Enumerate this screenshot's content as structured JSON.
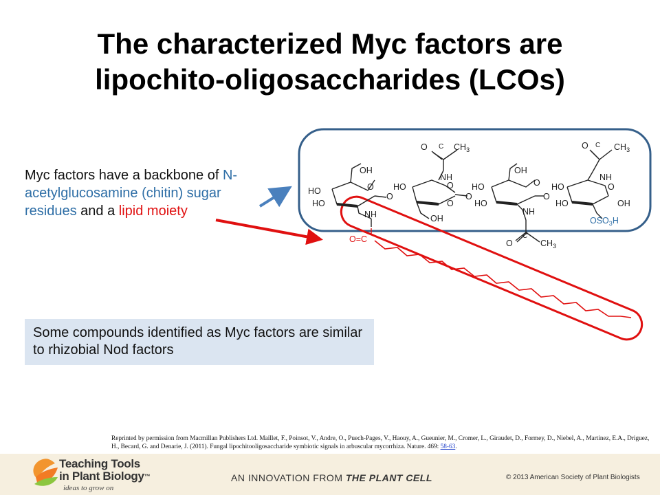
{
  "title": {
    "line1": "The characterized Myc factors are",
    "line2": "lipochito-oligosaccharides (LCOs)"
  },
  "description": {
    "part1": "Myc factors have a backbone of ",
    "blue_part": "N-acetylglucosamine (chitin) sugar residues",
    "part2": " and a ",
    "red_part": "lipid moiety"
  },
  "note": {
    "text": "Some compounds identified as Myc factors are similar to rhizobial Nod factors"
  },
  "structure_labels": {
    "o_c_ch3": [
      "O",
      "C",
      "CH",
      "3"
    ],
    "oh": "OH",
    "ho": "HO",
    "o": "O",
    "nh": "NH",
    "oso3h": [
      "OSO",
      "3",
      "H"
    ],
    "ester": "O=C"
  },
  "citation": {
    "text": "Reprinted by permission from Macmillan Publishers Ltd.  Maillet, F., Poinsot, V., Andre, O., Puech-Pages, V., Haouy, A., Gueunier, M., Cromer, L., Giraudet, D., Formey, D., Niebel, A., Martinez, E.A., Driguez, H., Becard, G. and Denarie, J. (2011). Fungal lipochitooligosaccharide symbiotic signals in arbuscular mycorrhiza. Nature. 469: ",
    "link": "58-63",
    "end": "."
  },
  "footer": {
    "brand_line1": "Teaching Tools",
    "brand_line2": "in Plant Biology",
    "trademark": "™",
    "tagline": "ideas to grow on",
    "innovation_prefix": "AN INNOVATION FROM ",
    "innovation_name": "THE PLANT CELL",
    "copyright": "© 2013 American Society of Plant Biologists"
  },
  "colors": {
    "blue_accent": "#2e6ea6",
    "box_border": "#355f8a",
    "red_accent": "#e01010",
    "note_bg": "#dbe5f1",
    "footer_bg": "#f6efdf"
  }
}
